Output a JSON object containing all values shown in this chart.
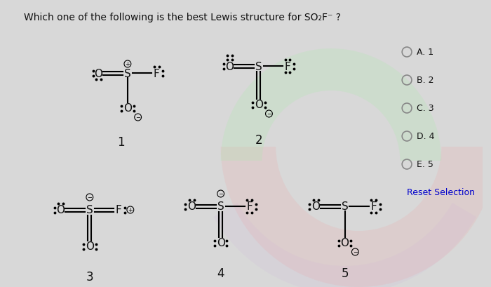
{
  "background_color": "#d8d8d8",
  "title": "Which one of the following is the best Lewis structure for SO₂F⁻ ?",
  "title_fontsize": 10,
  "answer_options": [
    "A. 1",
    "B. 2",
    "C. 3",
    "D. 4",
    "E. 5"
  ],
  "reset_text": "Reset Selection",
  "text_color": "#111111",
  "link_color": "#0000cc"
}
